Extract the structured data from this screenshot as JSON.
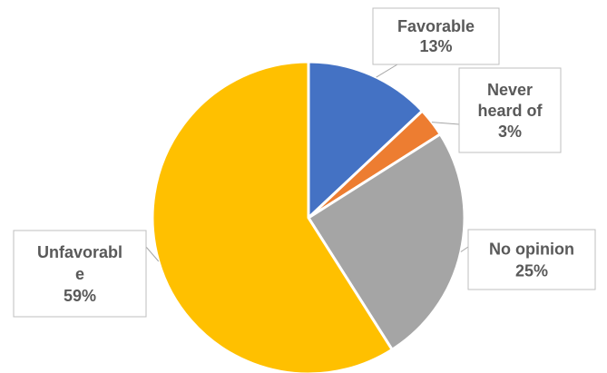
{
  "chart_data": {
    "type": "pie",
    "categories": [
      "Favorable",
      "Never heard of",
      "No opinion",
      "Unfavorable"
    ],
    "values": [
      13,
      3,
      25,
      59
    ],
    "labels": [
      {
        "lines": [
          "Favorable",
          "13%"
        ]
      },
      {
        "lines": [
          "Never",
          "heard of",
          "3%"
        ]
      },
      {
        "lines": [
          "No opinion",
          "25%"
        ]
      },
      {
        "lines": [
          "Unfavorabl",
          "e",
          "59%"
        ]
      }
    ],
    "colors": [
      "#4472c4",
      "#ed7d31",
      "#a5a5a5",
      "#ffc000"
    ],
    "title": "",
    "legend": "none",
    "start_angle": "12 o'clock",
    "direction": "clockwise"
  }
}
